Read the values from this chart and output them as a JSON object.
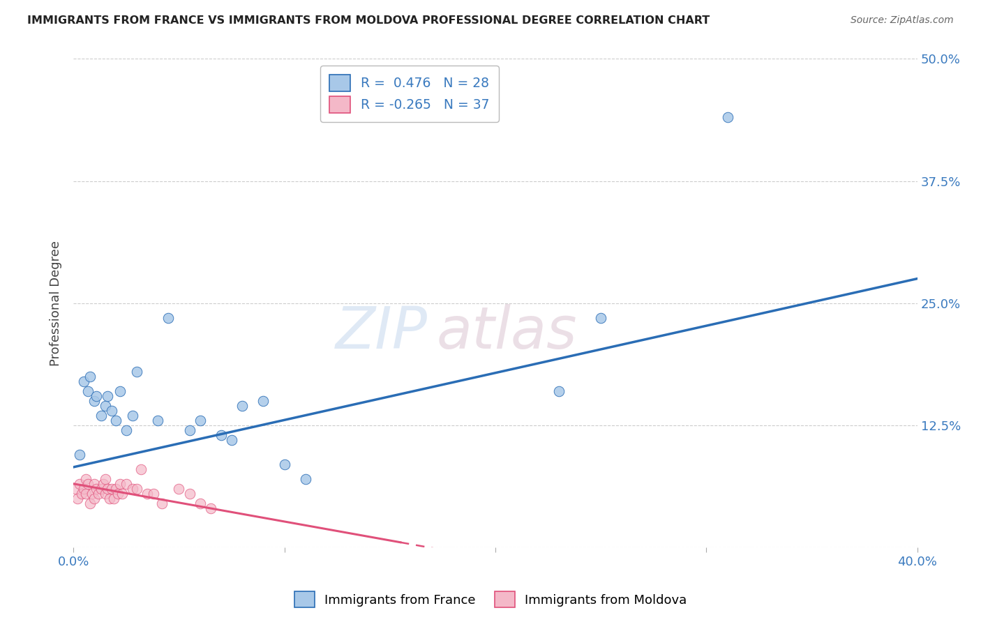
{
  "title": "IMMIGRANTS FROM FRANCE VS IMMIGRANTS FROM MOLDOVA PROFESSIONAL DEGREE CORRELATION CHART",
  "source": "Source: ZipAtlas.com",
  "ylabel": "Professional Degree",
  "xlim": [
    0.0,
    0.4
  ],
  "ylim": [
    0.0,
    0.5
  ],
  "france_color": "#a8c8e8",
  "moldova_color": "#f4b8c8",
  "france_line_color": "#2a6db5",
  "moldova_line_color": "#e0507a",
  "france_R": "0.476",
  "france_N": "28",
  "moldova_R": "-0.265",
  "moldova_N": "37",
  "legend_label_france": "Immigrants from France",
  "legend_label_moldova": "Immigrants from Moldova",
  "watermark_zip": "ZIP",
  "watermark_atlas": "atlas",
  "france_x": [
    0.003,
    0.005,
    0.007,
    0.008,
    0.01,
    0.011,
    0.013,
    0.015,
    0.016,
    0.018,
    0.02,
    0.022,
    0.025,
    0.028,
    0.03,
    0.04,
    0.045,
    0.055,
    0.06,
    0.07,
    0.075,
    0.08,
    0.09,
    0.1,
    0.11,
    0.23,
    0.25,
    0.31
  ],
  "france_y": [
    0.095,
    0.17,
    0.16,
    0.175,
    0.15,
    0.155,
    0.135,
    0.145,
    0.155,
    0.14,
    0.13,
    0.16,
    0.12,
    0.135,
    0.18,
    0.13,
    0.235,
    0.12,
    0.13,
    0.115,
    0.11,
    0.145,
    0.15,
    0.085,
    0.07,
    0.16,
    0.235,
    0.44
  ],
  "moldova_x": [
    0.001,
    0.002,
    0.003,
    0.004,
    0.005,
    0.006,
    0.006,
    0.007,
    0.008,
    0.009,
    0.01,
    0.01,
    0.011,
    0.012,
    0.013,
    0.014,
    0.015,
    0.015,
    0.016,
    0.017,
    0.018,
    0.019,
    0.02,
    0.021,
    0.022,
    0.023,
    0.025,
    0.028,
    0.03,
    0.032,
    0.035,
    0.038,
    0.042,
    0.05,
    0.055,
    0.06,
    0.065
  ],
  "moldova_y": [
    0.06,
    0.05,
    0.065,
    0.055,
    0.06,
    0.07,
    0.055,
    0.065,
    0.045,
    0.055,
    0.065,
    0.05,
    0.06,
    0.055,
    0.06,
    0.065,
    0.07,
    0.055,
    0.06,
    0.05,
    0.06,
    0.05,
    0.06,
    0.055,
    0.065,
    0.055,
    0.065,
    0.06,
    0.06,
    0.08,
    0.055,
    0.055,
    0.045,
    0.06,
    0.055,
    0.045,
    0.04
  ],
  "france_trend_x0": 0.0,
  "france_trend_y0": 0.082,
  "france_trend_x1": 0.4,
  "france_trend_y1": 0.275,
  "moldova_trend_x0": 0.0,
  "moldova_trend_y0": 0.065,
  "moldova_trend_x1": 0.155,
  "moldova_trend_y1": 0.005,
  "background_color": "#ffffff",
  "grid_color": "#cccccc"
}
